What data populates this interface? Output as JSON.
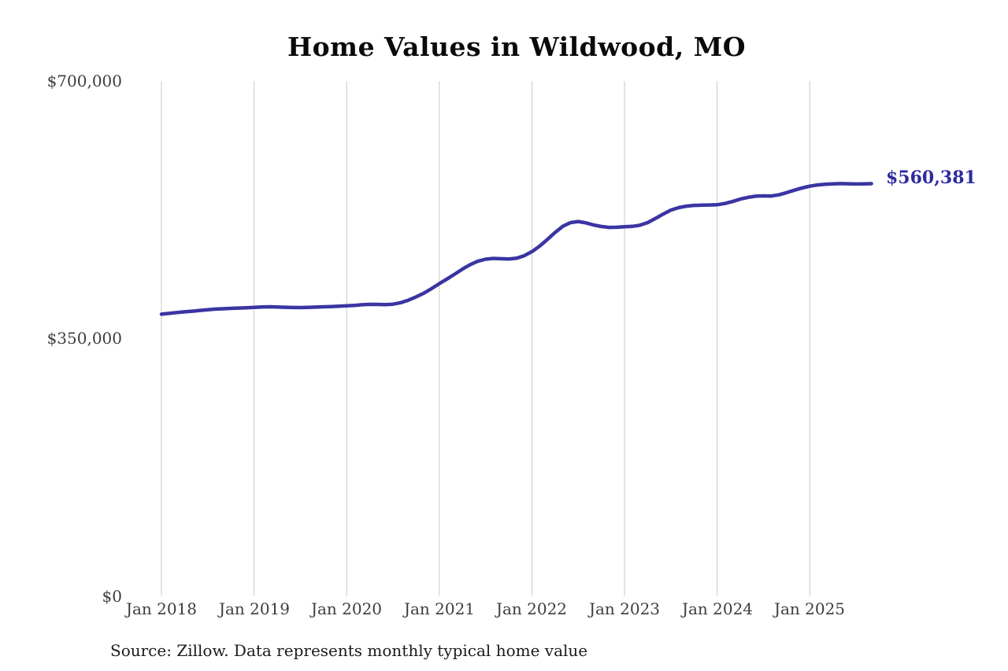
{
  "title": "Home Values in Wildwood, MO",
  "source_note": "Source: Zillow. Data represents monthly typical home value",
  "colors": {
    "line": "#3a35a2",
    "annotation": "#2e2b9e",
    "gridline": "#c9c9c9",
    "tick_text": "#3d3d3d"
  },
  "chart_data": {
    "type": "line",
    "title": "Home Values in Wildwood, MO",
    "xlabel": "",
    "ylabel": "",
    "ylim": [
      0,
      700000
    ],
    "grid": "vertical-year-lines",
    "legend": "none",
    "x_start": "Jan 2018",
    "x_interval": "month",
    "x_end": "Sep 2025",
    "y_tick_values": [
      700000,
      350000,
      0
    ],
    "y_tick_labels": [
      "$700,000",
      "$350,000",
      "$0"
    ],
    "x_tick_labels": [
      "Jan 2018",
      "Jan 2019",
      "Jan 2020",
      "Jan 2021",
      "Jan 2022",
      "Jan 2023",
      "Jan 2024",
      "Jan 2025"
    ],
    "end_point": {
      "x": "Sep 2025",
      "value": 560381,
      "label": "$560,381"
    },
    "series": [
      {
        "name": "Monthly typical home value",
        "values": [
          383000,
          384100,
          385200,
          386200,
          387100,
          388100,
          389100,
          389900,
          390400,
          390900,
          391300,
          391700,
          392300,
          392800,
          393000,
          392800,
          392400,
          392100,
          392000,
          392200,
          392600,
          393000,
          393400,
          393800,
          394300,
          395000,
          395800,
          396400,
          396300,
          395900,
          396600,
          398600,
          402000,
          406500,
          411500,
          417800,
          424500,
          430800,
          437400,
          444300,
          450400,
          455000,
          457800,
          458800,
          458400,
          458000,
          459000,
          462500,
          468000,
          475500,
          484500,
          494000,
          502500,
          507500,
          509000,
          507200,
          504300,
          502200,
          501000,
          501200,
          501900,
          502300,
          504000,
          507500,
          513000,
          519000,
          524500,
          527800,
          529800,
          530900,
          531200,
          531400,
          531800,
          533500,
          536200,
          539500,
          541800,
          543400,
          543800,
          543600,
          545200,
          548200,
          551500,
          554500,
          557000,
          558700,
          559700,
          560200,
          560500,
          560300,
          560000,
          560100,
          560381
        ]
      }
    ]
  }
}
